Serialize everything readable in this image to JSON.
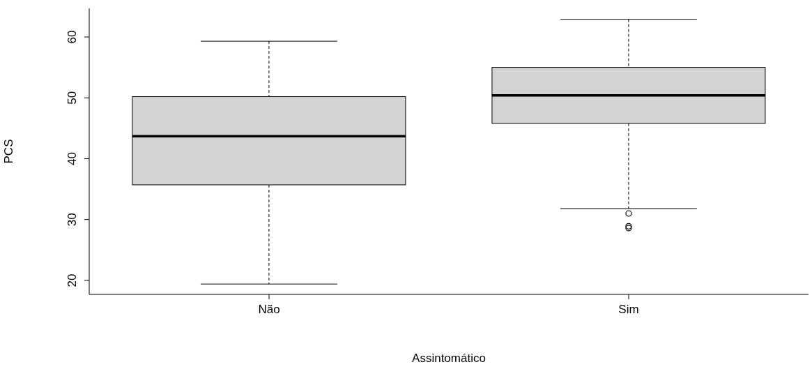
{
  "chart_data": {
    "type": "box",
    "xlabel": "Assintomático",
    "ylabel": "PCS",
    "categories": [
      "Não",
      "Sim"
    ],
    "boxes": [
      {
        "low": 19.4,
        "q1": 35.7,
        "median": 43.7,
        "q3": 50.2,
        "high": 59.3
      },
      {
        "low": 31.8,
        "q1": 45.8,
        "median": 50.4,
        "q3": 55.0,
        "high": 62.9,
        "outliers": [
          31.0,
          28.9,
          28.6
        ]
      }
    ],
    "ylim": [
      17.7,
      64.7
    ],
    "yticks": [
      20,
      30,
      40,
      50,
      60
    ]
  }
}
